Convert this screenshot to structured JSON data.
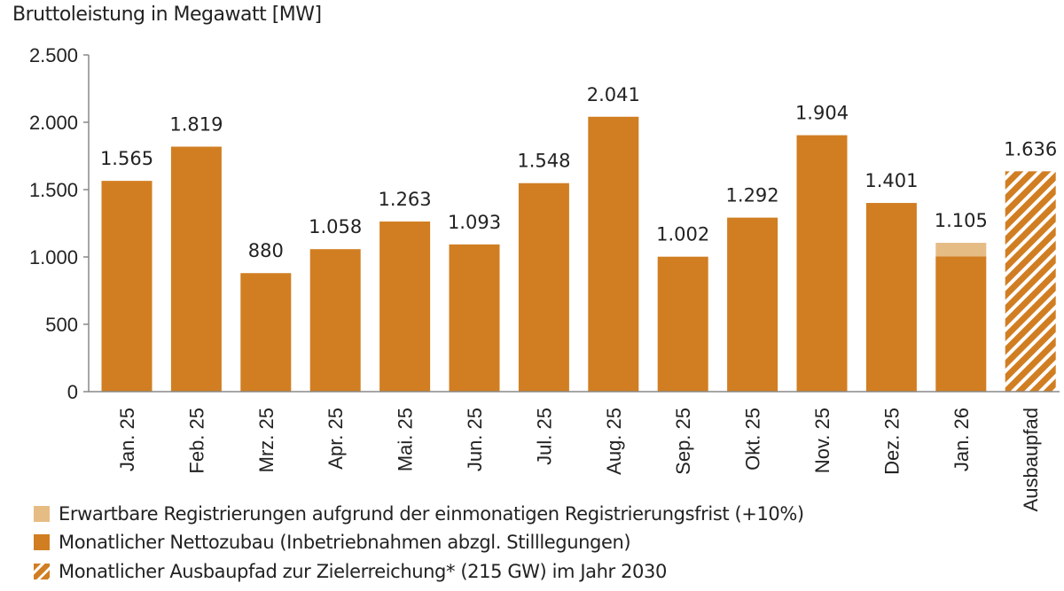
{
  "chart_data": {
    "type": "bar",
    "title": "",
    "ylabel": "Bruttoleistung in Megawatt [MW]",
    "xlabel": "",
    "ylim": [
      0,
      2500
    ],
    "yticks": [
      0,
      500,
      1000,
      1500,
      2000,
      2500
    ],
    "ytick_labels": [
      "0",
      "500",
      "1.000",
      "1.500",
      "2.000",
      "2.500"
    ],
    "grid": false,
    "stacked": true,
    "categories": [
      "Jan. 25",
      "Feb. 25",
      "Mrz. 25",
      "Apr. 25",
      "Mai. 25",
      "Jun. 25",
      "Jul. 25",
      "Aug. 25",
      "Sep. 25",
      "Okt. 25",
      "Nov. 25",
      "Dez. 25",
      "Jan. 26",
      "Ausbaupfad"
    ],
    "series": [
      {
        "name": "Monatlicher Nettozubau (Inbetriebnahmen abzgl. Stilllegungen)",
        "color": "#D17E22",
        "pattern": "solid",
        "values": [
          1565,
          1819,
          880,
          1058,
          1263,
          1093,
          1548,
          2041,
          1002,
          1292,
          1904,
          1401,
          1005,
          null
        ]
      },
      {
        "name": "Erwartbare Registrierungen aufgrund der einmonatigen Registrierungsfrist (+10%)",
        "color": "#E6BC85",
        "pattern": "solid",
        "values": [
          null,
          null,
          null,
          null,
          null,
          null,
          null,
          null,
          null,
          null,
          null,
          null,
          100,
          null
        ]
      },
      {
        "name": "Monatlicher Ausbaupfad zur Zielerreichung* (215 GW) im Jahr 2030",
        "color": "#D17E22",
        "pattern": "hatched",
        "values": [
          null,
          null,
          null,
          null,
          null,
          null,
          null,
          null,
          null,
          null,
          null,
          null,
          null,
          1636
        ]
      }
    ],
    "data_labels": [
      "1.565",
      "1.819",
      "880",
      "1.058",
      "1.263",
      "1.093",
      "1.548",
      "2.041",
      "1.002",
      "1.292",
      "1.904",
      "1.401",
      "1.105",
      "1.636"
    ],
    "totals": [
      1565,
      1819,
      880,
      1058,
      1263,
      1093,
      1548,
      2041,
      1002,
      1292,
      1904,
      1401,
      1105,
      1636
    ],
    "legend_position": "bottom-left",
    "legend": [
      "Erwartbare Registrierungen aufgrund der einmonatigen Registrierungsfrist (+10%)",
      "Monatlicher Nettozubau (Inbetriebnahmen abzgl. Stilllegungen)",
      "Monatlicher Ausbaupfad zur Zielerreichung* (215 GW) im Jahr 2030"
    ]
  }
}
